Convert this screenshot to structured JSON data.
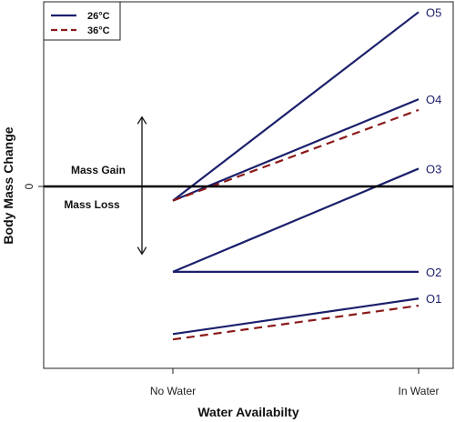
{
  "chart_data": {
    "type": "line",
    "xlabel": "Water Availabilty",
    "ylabel": "Body Mass Change",
    "categories": [
      "No Water",
      "In Water"
    ],
    "y_ticks": [
      {
        "value": 0,
        "label": "0"
      }
    ],
    "ylim": [
      -1.05,
      1.0
    ],
    "colors": {
      "26C": "#1b1f6b",
      "36C": "#8b1a1a"
    },
    "legend": {
      "placement": "top-left",
      "entries": [
        {
          "label": "26°C",
          "color": "#1b1f6b",
          "dash": "solid"
        },
        {
          "label": "36°C",
          "color": "#8b1a1a",
          "dash": "dashed"
        }
      ]
    },
    "series": [
      {
        "name": "O5",
        "group": "26C",
        "values": [
          -0.08,
          0.98
        ],
        "label": "O5"
      },
      {
        "name": "O4",
        "group": "26C",
        "values": [
          -0.08,
          0.49
        ],
        "label": "O4"
      },
      {
        "name": "O4",
        "group": "36C",
        "values": [
          -0.08,
          0.43
        ],
        "label": ""
      },
      {
        "name": "O3",
        "group": "26C",
        "values": [
          -0.48,
          0.1
        ],
        "label": "O3"
      },
      {
        "name": "O2",
        "group": "26C",
        "values": [
          -0.48,
          -0.48
        ],
        "label": "O2"
      },
      {
        "name": "O1",
        "group": "26C",
        "values": [
          -0.83,
          -0.63
        ],
        "label": "O1"
      },
      {
        "name": "O1",
        "group": "36C",
        "values": [
          -0.86,
          -0.67
        ],
        "label": ""
      }
    ],
    "annotations": {
      "gain": "Mass Gain",
      "loss": "Mass Loss",
      "arrow_top": 0.39,
      "arrow_bottom": -0.38
    }
  }
}
